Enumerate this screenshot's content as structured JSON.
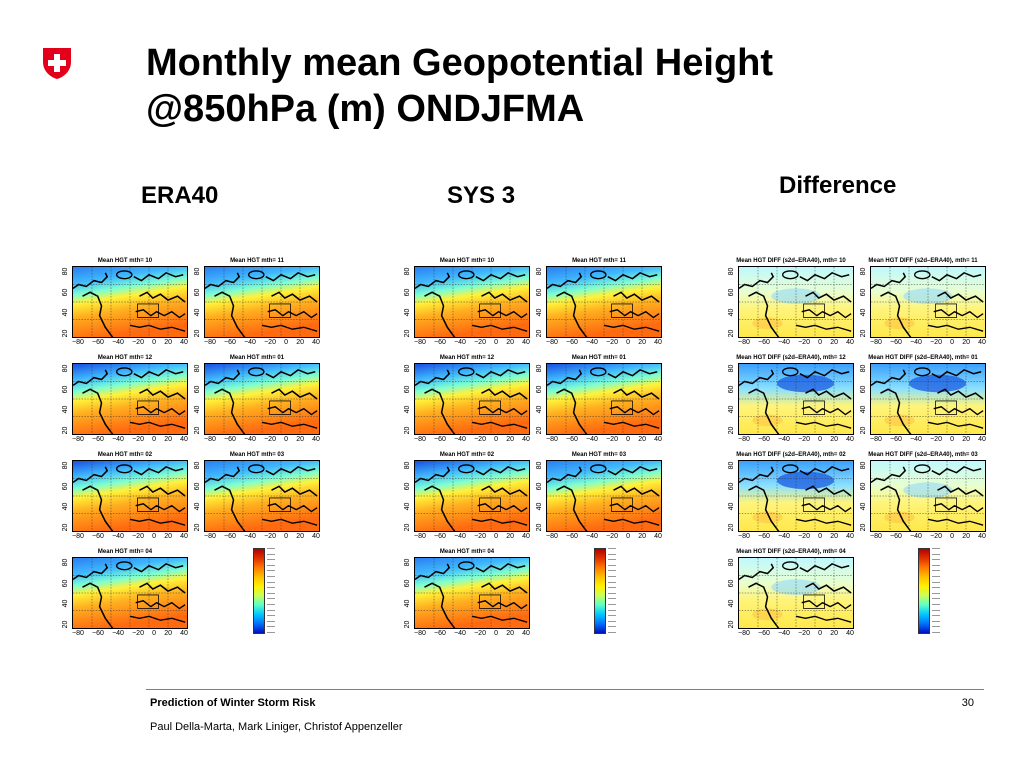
{
  "slide": {
    "title_line1": "Monthly mean Geopotential Height",
    "title_line2": "@850hPa (m) ONDJFMA",
    "logo_icon": "swiss-cross-shield-icon",
    "colors": {
      "logo_red": "#e2001a",
      "text": "#000000",
      "footer_rule": "#7f7f7f"
    }
  },
  "columns": [
    {
      "label": "ERA40",
      "style": "warm",
      "panels": [
        {
          "title": "Mean HGT mth= 10"
        },
        {
          "title": "Mean HGT mth= 11"
        },
        {
          "title": "Mean HGT mth= 12"
        },
        {
          "title": "Mean HGT mth= 01"
        },
        {
          "title": "Mean HGT mth= 02"
        },
        {
          "title": "Mean HGT mth= 03"
        },
        {
          "title": "Mean HGT mth= 04"
        }
      ]
    },
    {
      "label": "SYS 3",
      "style": "warm",
      "panels": [
        {
          "title": "Mean HGT mth= 10"
        },
        {
          "title": "Mean HGT mth= 11"
        },
        {
          "title": "Mean HGT mth= 12"
        },
        {
          "title": "Mean HGT mth= 01"
        },
        {
          "title": "Mean HGT mth= 02"
        },
        {
          "title": "Mean HGT mth= 03"
        },
        {
          "title": "Mean HGT mth= 04"
        }
      ]
    },
    {
      "label": "Difference",
      "style": "diff",
      "panels": [
        {
          "title": "Mean HGT DIFF (s2d–ERA40), mth= 10"
        },
        {
          "title": "Mean HGT DIFF (s2d–ERA40), mth= 11"
        },
        {
          "title": "Mean HGT DIFF (s2d–ERA40), mth= 12"
        },
        {
          "title": "Mean HGT DIFF (s2d–ERA40), mth= 01"
        },
        {
          "title": "Mean HGT DIFF (s2d–ERA40), mth= 02"
        },
        {
          "title": "Mean HGT DIFF (s2d–ERA40), mth= 03"
        },
        {
          "title": "Mean HGT DIFF (s2d–ERA40), mth= 04"
        }
      ]
    }
  ],
  "axes": {
    "y_ticks": [
      "20",
      "40",
      "60",
      "80"
    ],
    "x_ticks": [
      "−80",
      "−60",
      "−40",
      "−20",
      "0",
      "20",
      "40"
    ]
  },
  "colorbar_colors": [
    "#b30000",
    "#e03000",
    "#ff7a00",
    "#ffc000",
    "#fff200",
    "#c8ff5a",
    "#5cffc8",
    "#00c8ff",
    "#0070ff",
    "#0010c0"
  ],
  "footer": {
    "title": "Prediction of Winter Storm Risk",
    "authors": "Paul Della-Marta, Mark Liniger, Christof Appenzeller",
    "page": "30"
  }
}
